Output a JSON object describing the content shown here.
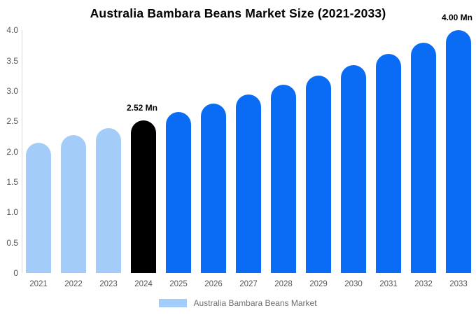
{
  "title": "Australia Bambara Beans Market Size (2021-2033)",
  "legend": {
    "label": "Australia Bambara Beans Market",
    "swatch_color": "#a3cdf8"
  },
  "colors": {
    "historical_bar": "#a3cdf8",
    "highlight_bar": "#000000",
    "forecast_bar": "#0a6cf4",
    "axis_line": "#d9d9d9",
    "tick_text": "#555555",
    "annotation_text": "#000000"
  },
  "chart_data": {
    "type": "bar",
    "title": "Australia Bambara Beans Market Size (2021-2033)",
    "xlabel": "",
    "ylabel": "",
    "categories": [
      "2021",
      "2022",
      "2023",
      "2024",
      "2025",
      "2026",
      "2027",
      "2028",
      "2029",
      "2030",
      "2031",
      "2032",
      "2033"
    ],
    "values": [
      2.15,
      2.27,
      2.39,
      2.52,
      2.65,
      2.79,
      2.94,
      3.1,
      3.26,
      3.43,
      3.61,
      3.8,
      4.0
    ],
    "unit": "Mn",
    "bar_colors": [
      "#a3cdf8",
      "#a3cdf8",
      "#a3cdf8",
      "#000000",
      "#0a6cf4",
      "#0a6cf4",
      "#0a6cf4",
      "#0a6cf4",
      "#0a6cf4",
      "#0a6cf4",
      "#0a6cf4",
      "#0a6cf4",
      "#0a6cf4"
    ],
    "annotations": [
      {
        "index": 3,
        "text": "2.52 Mn"
      },
      {
        "index": 12,
        "text": "4.00 Mn"
      }
    ],
    "ylim": [
      0,
      4.0
    ],
    "yticks": [
      {
        "v": 0.0,
        "label": "0"
      },
      {
        "v": 0.5,
        "label": "0.5"
      },
      {
        "v": 1.0,
        "label": "1.0"
      },
      {
        "v": 1.5,
        "label": "1.5"
      },
      {
        "v": 2.0,
        "label": "2.0"
      },
      {
        "v": 2.5,
        "label": "2.5"
      },
      {
        "v": 3.0,
        "label": "3.0"
      },
      {
        "v": 3.5,
        "label": "3.5"
      },
      {
        "v": 4.0,
        "label": "4.0"
      }
    ],
    "grid": false,
    "legend_position": "bottom"
  }
}
